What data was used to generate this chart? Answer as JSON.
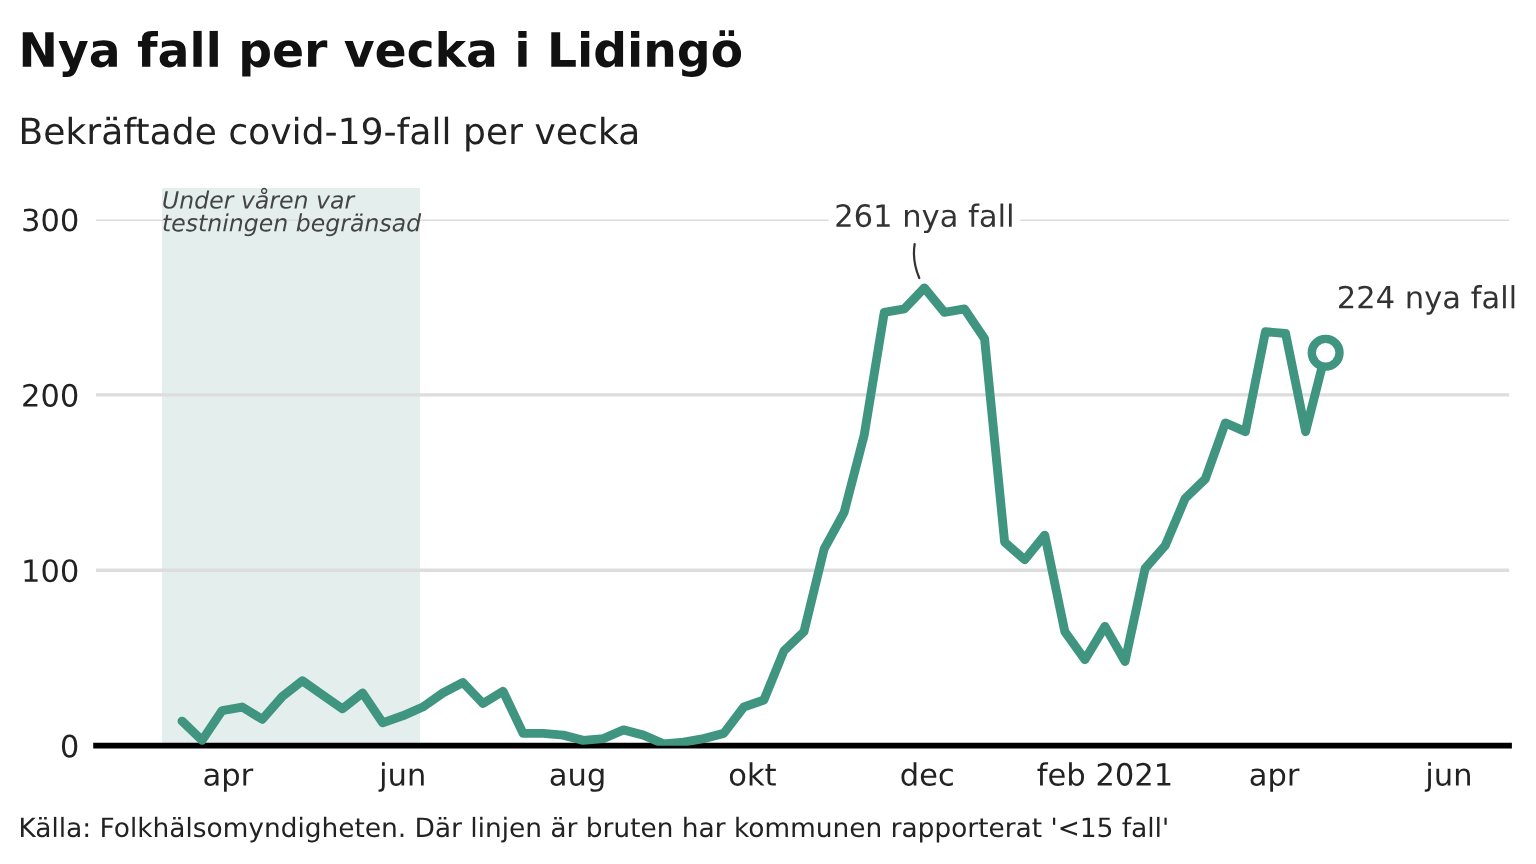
{
  "chart_data": {
    "type": "line",
    "title": "Nya fall per vecka i Lidingö",
    "subtitle": "Bekräftade covid-19-fall per vecka",
    "x": [
      "2020-03-16",
      "2020-03-23",
      "2020-03-30",
      "2020-04-06",
      "2020-04-13",
      "2020-04-20",
      "2020-04-27",
      "2020-05-04",
      "2020-05-11",
      "2020-05-18",
      "2020-05-25",
      "2020-06-01",
      "2020-06-08",
      "2020-06-15",
      "2020-06-22",
      "2020-06-29",
      "2020-07-06",
      "2020-07-13",
      "2020-07-20",
      "2020-07-27",
      "2020-08-03",
      "2020-08-10",
      "2020-08-17",
      "2020-08-24",
      "2020-08-31",
      "2020-09-07",
      "2020-09-14",
      "2020-09-21",
      "2020-09-28",
      "2020-10-05",
      "2020-10-12",
      "2020-10-19",
      "2020-10-26",
      "2020-11-02",
      "2020-11-09",
      "2020-11-16",
      "2020-11-23",
      "2020-11-30",
      "2020-12-07",
      "2020-12-14",
      "2020-12-21",
      "2020-12-28",
      "2021-01-04",
      "2021-01-11",
      "2021-01-18",
      "2021-01-25",
      "2021-02-01",
      "2021-02-08",
      "2021-02-15",
      "2021-02-22",
      "2021-03-01",
      "2021-03-08",
      "2021-03-15",
      "2021-03-22",
      "2021-03-29",
      "2021-04-05",
      "2021-04-12",
      "2021-04-19"
    ],
    "series": [
      {
        "color": "#3f9580",
        "values": [
          14,
          3,
          20,
          22,
          15,
          28,
          37,
          29,
          21,
          30,
          13,
          17,
          22,
          30,
          36,
          24,
          31,
          7,
          7,
          6,
          3,
          4,
          9,
          6,
          1,
          2,
          4,
          7,
          22,
          26,
          54,
          65,
          112,
          133,
          177,
          247,
          249,
          261,
          247,
          249,
          232,
          116,
          106,
          120,
          65,
          49,
          68,
          48,
          101,
          114,
          141,
          152,
          184,
          179,
          236,
          235,
          179,
          224
        ]
      }
    ],
    "xlim": [
      "2020-02-15",
      "2021-06-22"
    ],
    "xticks": [
      {
        "value": "2020-04-01",
        "label": "apr"
      },
      {
        "value": "2020-06-01",
        "label": "jun"
      },
      {
        "value": "2020-08-01",
        "label": "aug"
      },
      {
        "value": "2020-10-01",
        "label": "okt"
      },
      {
        "value": "2020-12-01",
        "label": "dec"
      },
      {
        "value": "2021-02-01",
        "label": "feb 2021"
      },
      {
        "value": "2021-04-01",
        "label": "apr"
      },
      {
        "value": "2021-06-01",
        "label": "jun"
      }
    ],
    "ylim": [
      0,
      300
    ],
    "yticks": [
      0,
      100,
      200,
      300
    ],
    "grid": "y",
    "marker": "none",
    "line_style": "solid",
    "bands": [
      {
        "axis": "x",
        "from": "2020-03-09",
        "to": "2020-06-07",
        "label": "Under våren var\ntestningen begränsad",
        "color": "#e4eeed"
      }
    ],
    "annotations": [
      {
        "text": "261 nya fall",
        "x": "2020-11-30",
        "y": 261
      },
      {
        "text": "224 nya fall",
        "x": "2021-04-19",
        "y": 224
      },
      "Källa: Folkhälsomyndigheten. Där linjen är bruten har kommunen rapporterat '<15 fall'"
    ]
  }
}
